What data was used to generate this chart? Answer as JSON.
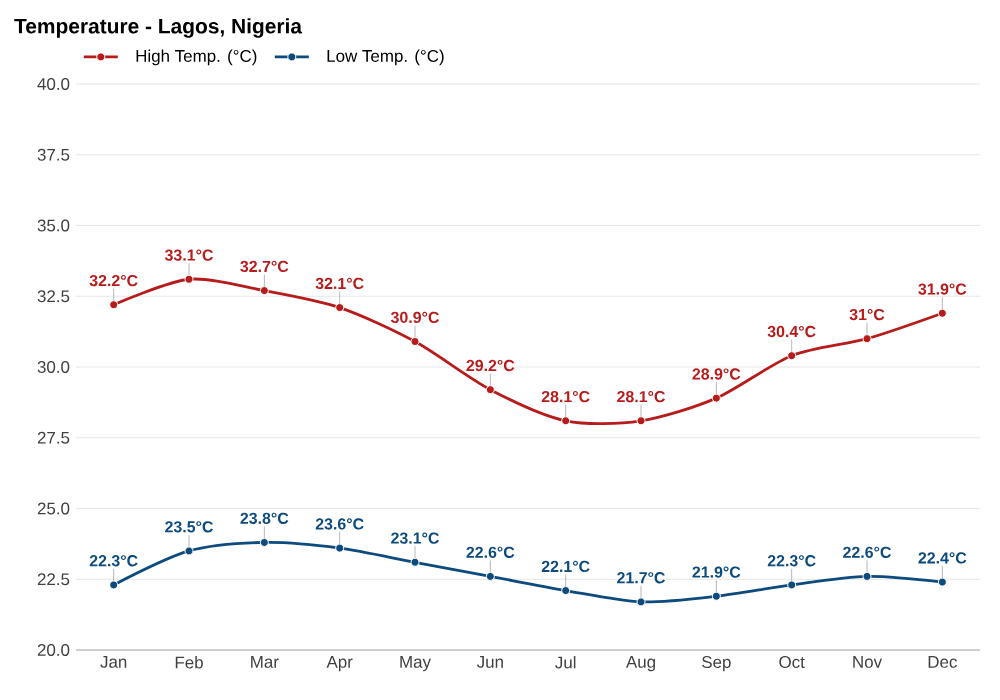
{
  "chart_data": {
    "type": "line",
    "title": "Temperature - Lagos, Nigeria",
    "categories": [
      "Jan",
      "Feb",
      "Mar",
      "Apr",
      "May",
      "Jun",
      "Jul",
      "Aug",
      "Sep",
      "Oct",
      "Nov",
      "Dec"
    ],
    "series": [
      {
        "name": "High Temp. (°C)",
        "color": "#b71c1c",
        "values": [
          32.2,
          33.1,
          32.7,
          32.1,
          30.9,
          29.2,
          28.1,
          28.1,
          28.9,
          30.4,
          31,
          31.9
        ],
        "value_labels": [
          "32.2°C",
          "33.1°C",
          "32.7°C",
          "32.1°C",
          "30.9°C",
          "29.2°C",
          "28.1°C",
          "28.1°C",
          "28.9°C",
          "30.4°C",
          "31°C",
          "31.9°C"
        ]
      },
      {
        "name": "Low Temp. (°C)",
        "color": "#0d4a7e",
        "values": [
          22.3,
          23.5,
          23.8,
          23.6,
          23.1,
          22.6,
          22.1,
          21.7,
          21.9,
          22.3,
          22.6,
          22.4
        ],
        "value_labels": [
          "22.3°C",
          "23.5°C",
          "23.8°C",
          "23.6°C",
          "23.1°C",
          "22.6°C",
          "22.1°C",
          "21.7°C",
          "21.9°C",
          "22.3°C",
          "22.6°C",
          "22.4°C"
        ]
      }
    ],
    "ylim": [
      20,
      40
    ],
    "yticks": [
      {
        "value": 20,
        "label": "20.0"
      },
      {
        "value": 22.5,
        "label": "22.5"
      },
      {
        "value": 25,
        "label": "25.0"
      },
      {
        "value": 27.5,
        "label": "27.5"
      },
      {
        "value": 30,
        "label": "30.0"
      },
      {
        "value": 32.5,
        "label": "32.5"
      },
      {
        "value": 35,
        "label": "35.0"
      },
      {
        "value": 37.5,
        "label": "37.5"
      },
      {
        "value": 40,
        "label": "40.0"
      }
    ],
    "grid": "y",
    "legend": "top left",
    "marker": "circle"
  }
}
